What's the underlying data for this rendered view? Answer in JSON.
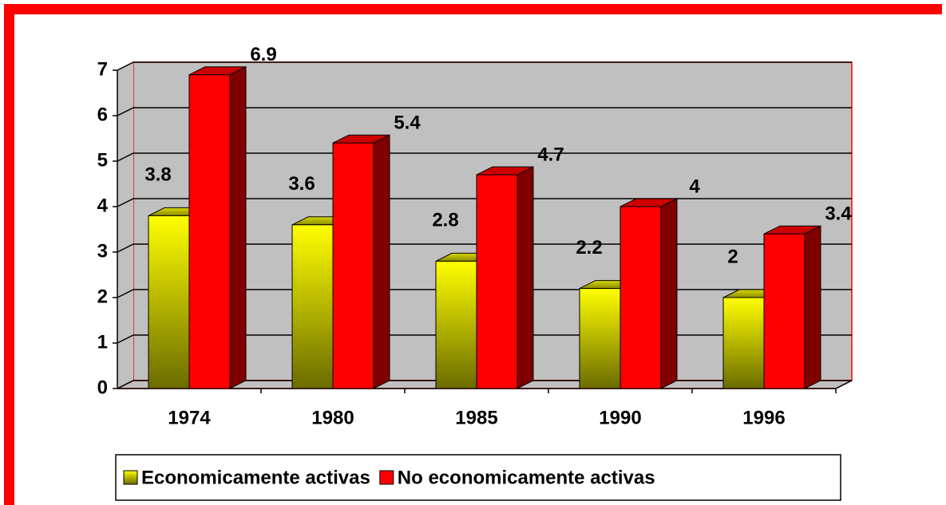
{
  "chart_data": {
    "type": "bar",
    "categories": [
      "1974",
      "1980",
      "1985",
      "1990",
      "1996"
    ],
    "series": [
      {
        "name": "Economicamente activas",
        "color": "#ffff00",
        "values": [
          3.8,
          3.6,
          2.8,
          2.2,
          2
        ]
      },
      {
        "name": "No economicamente activas",
        "color": "#ff0000",
        "values": [
          6.9,
          5.4,
          4.7,
          4,
          3.4
        ]
      }
    ],
    "ylim": [
      0,
      7
    ],
    "yticks": [
      0,
      1,
      2,
      3,
      4,
      5,
      6,
      7
    ],
    "grid": true,
    "legend": "bottom"
  }
}
